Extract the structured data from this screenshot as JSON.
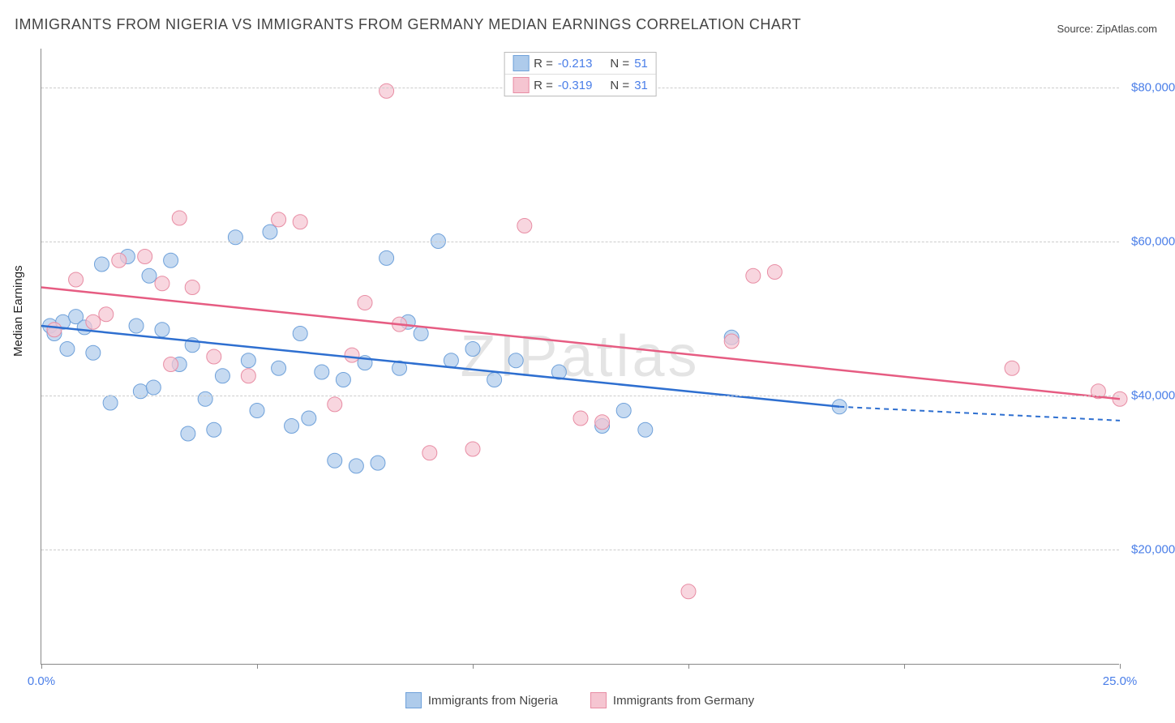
{
  "title": "IMMIGRANTS FROM NIGERIA VS IMMIGRANTS FROM GERMANY MEDIAN EARNINGS CORRELATION CHART",
  "source": "Source: ZipAtlas.com",
  "watermark": "ZIPatlas",
  "ylabel": "Median Earnings",
  "chart": {
    "type": "scatter",
    "xlim": [
      0,
      25
    ],
    "ylim": [
      5000,
      85000
    ],
    "x_ticks": [
      0,
      5,
      10,
      15,
      20,
      25
    ],
    "x_tick_labels": {
      "0": "0.0%",
      "25": "25.0%"
    },
    "y_gridlines": [
      20000,
      40000,
      60000,
      80000
    ],
    "y_tick_labels": [
      "$20,000",
      "$40,000",
      "$60,000",
      "$80,000"
    ],
    "grid_color": "#cccccc",
    "background": "#ffffff",
    "axis_color": "#888888",
    "tick_label_color": "#4a7ee8",
    "series": [
      {
        "name": "Immigrants from Nigeria",
        "fill": "#aecbeb",
        "stroke": "#6fa1da",
        "trend_color": "#2e6fd0",
        "trend": {
          "x1": 0,
          "y1": 49000,
          "x2": 18.5,
          "y2": 38500,
          "extend_x2": 25,
          "extend_y2": 36700
        },
        "R": "-0.213",
        "N": "51",
        "points": [
          [
            0.2,
            49000
          ],
          [
            0.3,
            48000
          ],
          [
            0.5,
            49500
          ],
          [
            0.6,
            46000
          ],
          [
            0.8,
            50200
          ],
          [
            1.0,
            48800
          ],
          [
            1.2,
            45500
          ],
          [
            1.4,
            57000
          ],
          [
            1.6,
            39000
          ],
          [
            2.0,
            58000
          ],
          [
            2.2,
            49000
          ],
          [
            2.3,
            40500
          ],
          [
            2.5,
            55500
          ],
          [
            2.6,
            41000
          ],
          [
            2.8,
            48500
          ],
          [
            3.0,
            57500
          ],
          [
            3.2,
            44000
          ],
          [
            3.4,
            35000
          ],
          [
            3.5,
            46500
          ],
          [
            3.8,
            39500
          ],
          [
            4.0,
            35500
          ],
          [
            4.2,
            42500
          ],
          [
            4.5,
            60500
          ],
          [
            4.8,
            44500
          ],
          [
            5.0,
            38000
          ],
          [
            5.3,
            61200
          ],
          [
            5.5,
            43500
          ],
          [
            5.8,
            36000
          ],
          [
            6.0,
            48000
          ],
          [
            6.2,
            37000
          ],
          [
            6.5,
            43000
          ],
          [
            6.8,
            31500
          ],
          [
            7.0,
            42000
          ],
          [
            7.3,
            30800
          ],
          [
            7.5,
            44200
          ],
          [
            7.8,
            31200
          ],
          [
            8.0,
            57800
          ],
          [
            8.3,
            43500
          ],
          [
            8.5,
            49500
          ],
          [
            8.8,
            48000
          ],
          [
            9.2,
            60000
          ],
          [
            9.5,
            44500
          ],
          [
            10.0,
            46000
          ],
          [
            10.5,
            42000
          ],
          [
            11.0,
            44500
          ],
          [
            12.0,
            43000
          ],
          [
            13.0,
            36000
          ],
          [
            13.5,
            38000
          ],
          [
            14.0,
            35500
          ],
          [
            16.0,
            47500
          ],
          [
            18.5,
            38500
          ]
        ]
      },
      {
        "name": "Immigrants from Germany",
        "fill": "#f5c5d1",
        "stroke": "#e88da4",
        "trend_color": "#e65c82",
        "trend": {
          "x1": 0,
          "y1": 54000,
          "x2": 25,
          "y2": 39500
        },
        "R": "-0.319",
        "N": "31",
        "points": [
          [
            0.3,
            48500
          ],
          [
            0.8,
            55000
          ],
          [
            1.2,
            49500
          ],
          [
            1.5,
            50500
          ],
          [
            1.8,
            57500
          ],
          [
            2.4,
            58000
          ],
          [
            2.8,
            54500
          ],
          [
            3.0,
            44000
          ],
          [
            3.2,
            63000
          ],
          [
            3.5,
            54000
          ],
          [
            4.0,
            45000
          ],
          [
            4.8,
            42500
          ],
          [
            5.5,
            62800
          ],
          [
            6.0,
            62500
          ],
          [
            6.8,
            38800
          ],
          [
            7.2,
            45200
          ],
          [
            7.5,
            52000
          ],
          [
            8.0,
            79500
          ],
          [
            8.3,
            49200
          ],
          [
            9.0,
            32500
          ],
          [
            10.0,
            33000
          ],
          [
            11.2,
            62000
          ],
          [
            12.5,
            37000
          ],
          [
            13.0,
            36500
          ],
          [
            15.0,
            14500
          ],
          [
            16.0,
            47000
          ],
          [
            16.5,
            55500
          ],
          [
            17.0,
            56000
          ],
          [
            22.5,
            43500
          ],
          [
            24.5,
            40500
          ],
          [
            25.0,
            39500
          ]
        ]
      }
    ]
  },
  "legend_bottom": {
    "s1": "Immigrants from Nigeria",
    "s2": "Immigrants from Germany"
  }
}
